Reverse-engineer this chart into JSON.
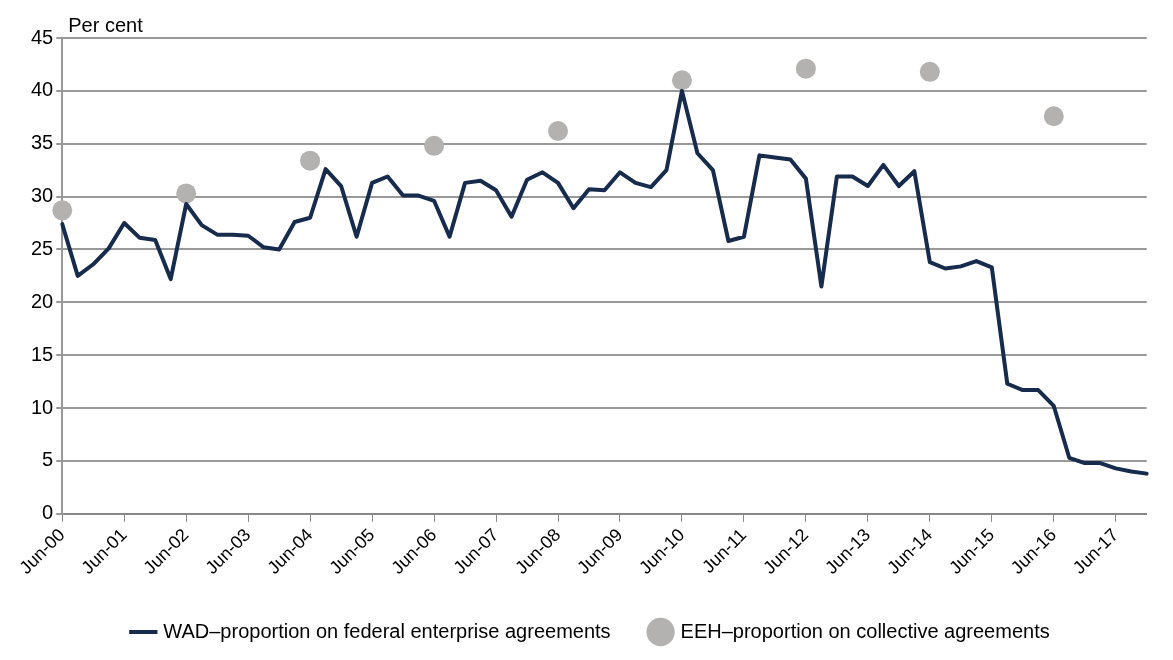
{
  "chart_data": {
    "type": "line",
    "ylabel": "Per cent",
    "categories": [
      "Jun-00",
      null,
      null,
      null,
      "Jun-01",
      null,
      null,
      null,
      "Jun-02",
      null,
      null,
      null,
      "Jun-03",
      null,
      null,
      null,
      "Jun-04",
      null,
      null,
      null,
      "Jun-05",
      null,
      null,
      null,
      "Jun-06",
      null,
      null,
      null,
      "Jun-07",
      null,
      null,
      null,
      "Jun-08",
      null,
      null,
      null,
      "Jun-09",
      null,
      null,
      null,
      "Jun-10",
      null,
      null,
      null,
      "Jun-11",
      null,
      null,
      null,
      "Jun-12",
      null,
      null,
      null,
      "Jun-13",
      null,
      null,
      null,
      "Jun-14",
      null,
      null,
      null,
      "Jun-15",
      null,
      null,
      null,
      "Jun-16",
      null,
      null,
      null,
      "Jun-17",
      null,
      null
    ],
    "series": [
      {
        "name": "WAD–proportion on federal enterprise agreements",
        "type": "line",
        "color": "#172b4d",
        "marker": "none",
        "line_style": "solid",
        "values": [
          27.4,
          22.5,
          23.6,
          25.1,
          27.5,
          26.1,
          25.9,
          22.2,
          29.3,
          27.3,
          26.4,
          26.4,
          26.3,
          25.2,
          25.0,
          27.6,
          28.0,
          32.6,
          31.0,
          26.2,
          31.3,
          31.9,
          30.1,
          30.1,
          29.6,
          26.2,
          31.3,
          31.5,
          30.6,
          28.1,
          31.6,
          32.3,
          31.3,
          28.9,
          30.7,
          30.6,
          32.3,
          31.3,
          30.9,
          32.5,
          40.0,
          34.1,
          32.5,
          25.8,
          26.2,
          33.9,
          33.7,
          33.5,
          31.7,
          21.5,
          31.9,
          31.9,
          31.0,
          33.0,
          31.0,
          32.4,
          23.8,
          23.2,
          23.4,
          23.9,
          23.3,
          12.3,
          11.7,
          11.7,
          10.2,
          5.3,
          4.8,
          4.8,
          4.3,
          4.0,
          3.8
        ]
      },
      {
        "name": "EEH–proportion on collective agreements",
        "type": "scatter",
        "color": "#b3b2b0",
        "marker": "circle",
        "values": [
          28.7,
          null,
          null,
          null,
          null,
          null,
          null,
          null,
          30.3,
          null,
          null,
          null,
          null,
          null,
          null,
          null,
          33.4,
          null,
          null,
          null,
          null,
          null,
          null,
          null,
          34.8,
          null,
          null,
          null,
          null,
          null,
          null,
          null,
          36.2,
          null,
          null,
          null,
          null,
          null,
          null,
          null,
          41.0,
          null,
          null,
          null,
          null,
          null,
          null,
          null,
          42.1,
          null,
          null,
          null,
          null,
          null,
          null,
          null,
          41.8,
          null,
          null,
          null,
          null,
          null,
          null,
          null,
          37.6,
          null,
          null,
          null,
          null,
          null,
          null
        ]
      }
    ],
    "ylim": [
      0,
      45
    ],
    "yticks": [
      0,
      5,
      10,
      15,
      20,
      25,
      30,
      35,
      40,
      45
    ],
    "grid": "y",
    "legend": "bottom"
  }
}
